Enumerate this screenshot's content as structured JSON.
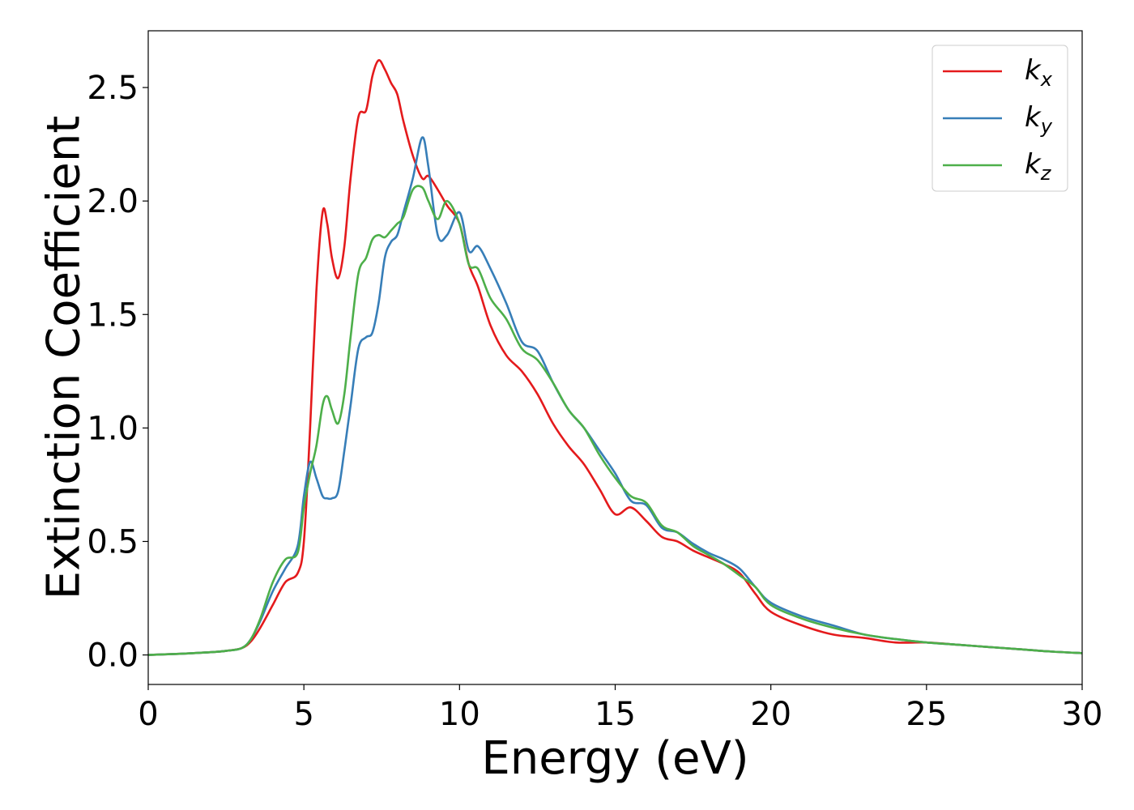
{
  "chart_data": {
    "type": "line",
    "title": "",
    "xlabel": "Energy (eV)",
    "ylabel": "Extinction Coefficient",
    "xlim": [
      0,
      30
    ],
    "ylim": [
      -0.13,
      2.75
    ],
    "xticks": [
      0,
      5,
      10,
      15,
      20,
      25,
      30
    ],
    "xtick_labels": [
      "0",
      "5",
      "10",
      "15",
      "20",
      "25",
      "30"
    ],
    "yticks": [
      0.0,
      0.5,
      1.0,
      1.5,
      2.0,
      2.5
    ],
    "ytick_labels": [
      "0.0",
      "0.5",
      "1.0",
      "1.5",
      "2.0",
      "2.5"
    ],
    "grid": false,
    "legend_position": "top-right",
    "series": [
      {
        "name": "k_x",
        "label_main": "k",
        "label_sub": "x",
        "color": "#e41a1c",
        "x": [
          0,
          1,
          2,
          2.5,
          3,
          3.3,
          3.6,
          4.0,
          4.4,
          4.8,
          5.0,
          5.2,
          5.4,
          5.6,
          5.75,
          5.9,
          6.1,
          6.3,
          6.5,
          6.75,
          7.0,
          7.2,
          7.4,
          7.6,
          7.8,
          8.0,
          8.2,
          8.5,
          8.8,
          9.0,
          9.3,
          9.6,
          10.0,
          10.3,
          10.6,
          11.0,
          11.5,
          12.0,
          12.5,
          13.0,
          13.5,
          14.0,
          14.5,
          15.0,
          15.5,
          16.0,
          16.5,
          17.0,
          17.5,
          18.0,
          18.5,
          19.0,
          19.5,
          20.0,
          21.0,
          22.0,
          23.0,
          24.0,
          25.0,
          26.0,
          27.0,
          28.0,
          29.0,
          30.0
        ],
        "y": [
          0.0,
          0.005,
          0.012,
          0.018,
          0.03,
          0.06,
          0.12,
          0.22,
          0.32,
          0.36,
          0.5,
          1.0,
          1.6,
          1.95,
          1.9,
          1.75,
          1.66,
          1.8,
          2.1,
          2.37,
          2.4,
          2.55,
          2.62,
          2.58,
          2.52,
          2.47,
          2.35,
          2.2,
          2.1,
          2.11,
          2.05,
          1.98,
          1.9,
          1.72,
          1.62,
          1.45,
          1.32,
          1.25,
          1.15,
          1.02,
          0.92,
          0.84,
          0.73,
          0.62,
          0.65,
          0.59,
          0.52,
          0.5,
          0.46,
          0.43,
          0.4,
          0.36,
          0.27,
          0.19,
          0.13,
          0.09,
          0.075,
          0.055,
          0.055,
          0.045,
          0.035,
          0.025,
          0.015,
          0.008
        ]
      },
      {
        "name": "k_y",
        "label_main": "k",
        "label_sub": "y",
        "color": "#377eb8",
        "x": [
          0,
          1,
          2,
          2.5,
          3,
          3.3,
          3.6,
          4.0,
          4.4,
          4.8,
          5.0,
          5.2,
          5.4,
          5.6,
          5.75,
          5.9,
          6.1,
          6.3,
          6.5,
          6.75,
          7.0,
          7.2,
          7.4,
          7.6,
          7.8,
          8.0,
          8.2,
          8.5,
          8.8,
          9.0,
          9.3,
          9.6,
          10.0,
          10.3,
          10.6,
          11.0,
          11.5,
          12.0,
          12.5,
          13.0,
          13.5,
          14.0,
          14.5,
          15.0,
          15.5,
          16.0,
          16.5,
          17.0,
          17.5,
          18.0,
          18.5,
          19.0,
          19.5,
          20.0,
          21.0,
          22.0,
          23.0,
          24.0,
          25.0,
          26.0,
          27.0,
          28.0,
          29.0,
          30.0
        ],
        "y": [
          0.0,
          0.005,
          0.012,
          0.018,
          0.03,
          0.07,
          0.15,
          0.28,
          0.38,
          0.48,
          0.7,
          0.85,
          0.78,
          0.7,
          0.69,
          0.69,
          0.72,
          0.9,
          1.1,
          1.35,
          1.4,
          1.42,
          1.55,
          1.75,
          1.82,
          1.85,
          1.95,
          2.1,
          2.28,
          2.15,
          1.85,
          1.85,
          1.95,
          1.78,
          1.8,
          1.7,
          1.55,
          1.38,
          1.34,
          1.2,
          1.08,
          1.0,
          0.9,
          0.8,
          0.68,
          0.66,
          0.56,
          0.54,
          0.49,
          0.45,
          0.42,
          0.38,
          0.3,
          0.23,
          0.17,
          0.13,
          0.09,
          0.07,
          0.055,
          0.045,
          0.035,
          0.025,
          0.015,
          0.008
        ]
      },
      {
        "name": "k_z",
        "label_main": "k",
        "label_sub": "z",
        "color": "#4daf4a",
        "x": [
          0,
          1,
          2,
          2.5,
          3,
          3.3,
          3.6,
          4.0,
          4.4,
          4.8,
          5.0,
          5.2,
          5.4,
          5.6,
          5.75,
          5.9,
          6.1,
          6.3,
          6.5,
          6.75,
          7.0,
          7.2,
          7.4,
          7.6,
          7.8,
          8.0,
          8.2,
          8.5,
          8.8,
          9.0,
          9.3,
          9.6,
          10.0,
          10.3,
          10.6,
          11.0,
          11.5,
          12.0,
          12.5,
          13.0,
          13.5,
          14.0,
          14.5,
          15.0,
          15.5,
          16.0,
          16.5,
          17.0,
          17.5,
          18.0,
          18.5,
          19.0,
          19.5,
          20.0,
          21.0,
          22.0,
          23.0,
          24.0,
          25.0,
          26.0,
          27.0,
          28.0,
          29.0,
          30.0
        ],
        "y": [
          0.0,
          0.005,
          0.012,
          0.018,
          0.03,
          0.07,
          0.16,
          0.32,
          0.42,
          0.45,
          0.65,
          0.8,
          0.92,
          1.1,
          1.14,
          1.08,
          1.02,
          1.15,
          1.4,
          1.68,
          1.75,
          1.83,
          1.85,
          1.84,
          1.87,
          1.9,
          1.93,
          2.05,
          2.06,
          2.0,
          1.92,
          2.0,
          1.9,
          1.72,
          1.7,
          1.57,
          1.48,
          1.35,
          1.3,
          1.2,
          1.08,
          1.0,
          0.88,
          0.78,
          0.7,
          0.67,
          0.57,
          0.54,
          0.48,
          0.44,
          0.4,
          0.35,
          0.3,
          0.22,
          0.16,
          0.12,
          0.09,
          0.07,
          0.055,
          0.045,
          0.035,
          0.025,
          0.015,
          0.008
        ]
      }
    ]
  }
}
